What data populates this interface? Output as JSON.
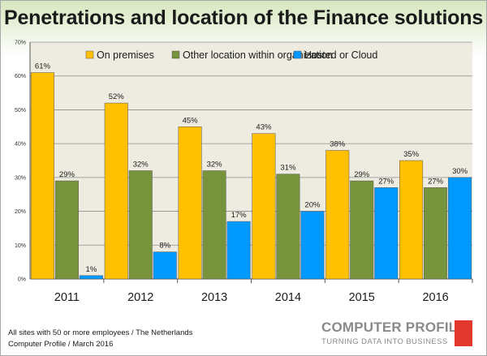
{
  "chart_data": {
    "type": "bar",
    "title": "Penetrations and location of the Finance solutions",
    "categories": [
      "2011",
      "2012",
      "2013",
      "2014",
      "2015",
      "2016"
    ],
    "series": [
      {
        "name": "On premises",
        "color": "#ffc000",
        "values": [
          61,
          52,
          45,
          43,
          38,
          35
        ],
        "labels": [
          "61%",
          "52%",
          "45%",
          "43%",
          "38%",
          "35%"
        ]
      },
      {
        "name": "Other location within organization",
        "color": "#77933c",
        "values": [
          29,
          32,
          32,
          31,
          29,
          27
        ],
        "labels": [
          "29%",
          "32%",
          "32%",
          "31%",
          "29%",
          "27%"
        ]
      },
      {
        "name": "Hosted or Cloud",
        "color": "#0099ff",
        "values": [
          1,
          8,
          17,
          20,
          27,
          30
        ],
        "labels": [
          "1%",
          "8%",
          "17%",
          "20%",
          "27%",
          "30%"
        ]
      }
    ],
    "ylim": [
      0,
      70
    ],
    "yticks": [
      "0%",
      "10%",
      "20%",
      "30%",
      "40%",
      "50%",
      "60%",
      "70%"
    ],
    "grid": true,
    "legend_position": "top-right"
  },
  "footnote": {
    "line1": "All sites with 50 or more employees / The Netherlands",
    "line2": "Computer Profile / March 2016"
  },
  "logo": {
    "name": "COMPUTER PROFILE",
    "tagline": "TURNING DATA INTO BUSINESS",
    "mark_color": "#e2382e"
  }
}
